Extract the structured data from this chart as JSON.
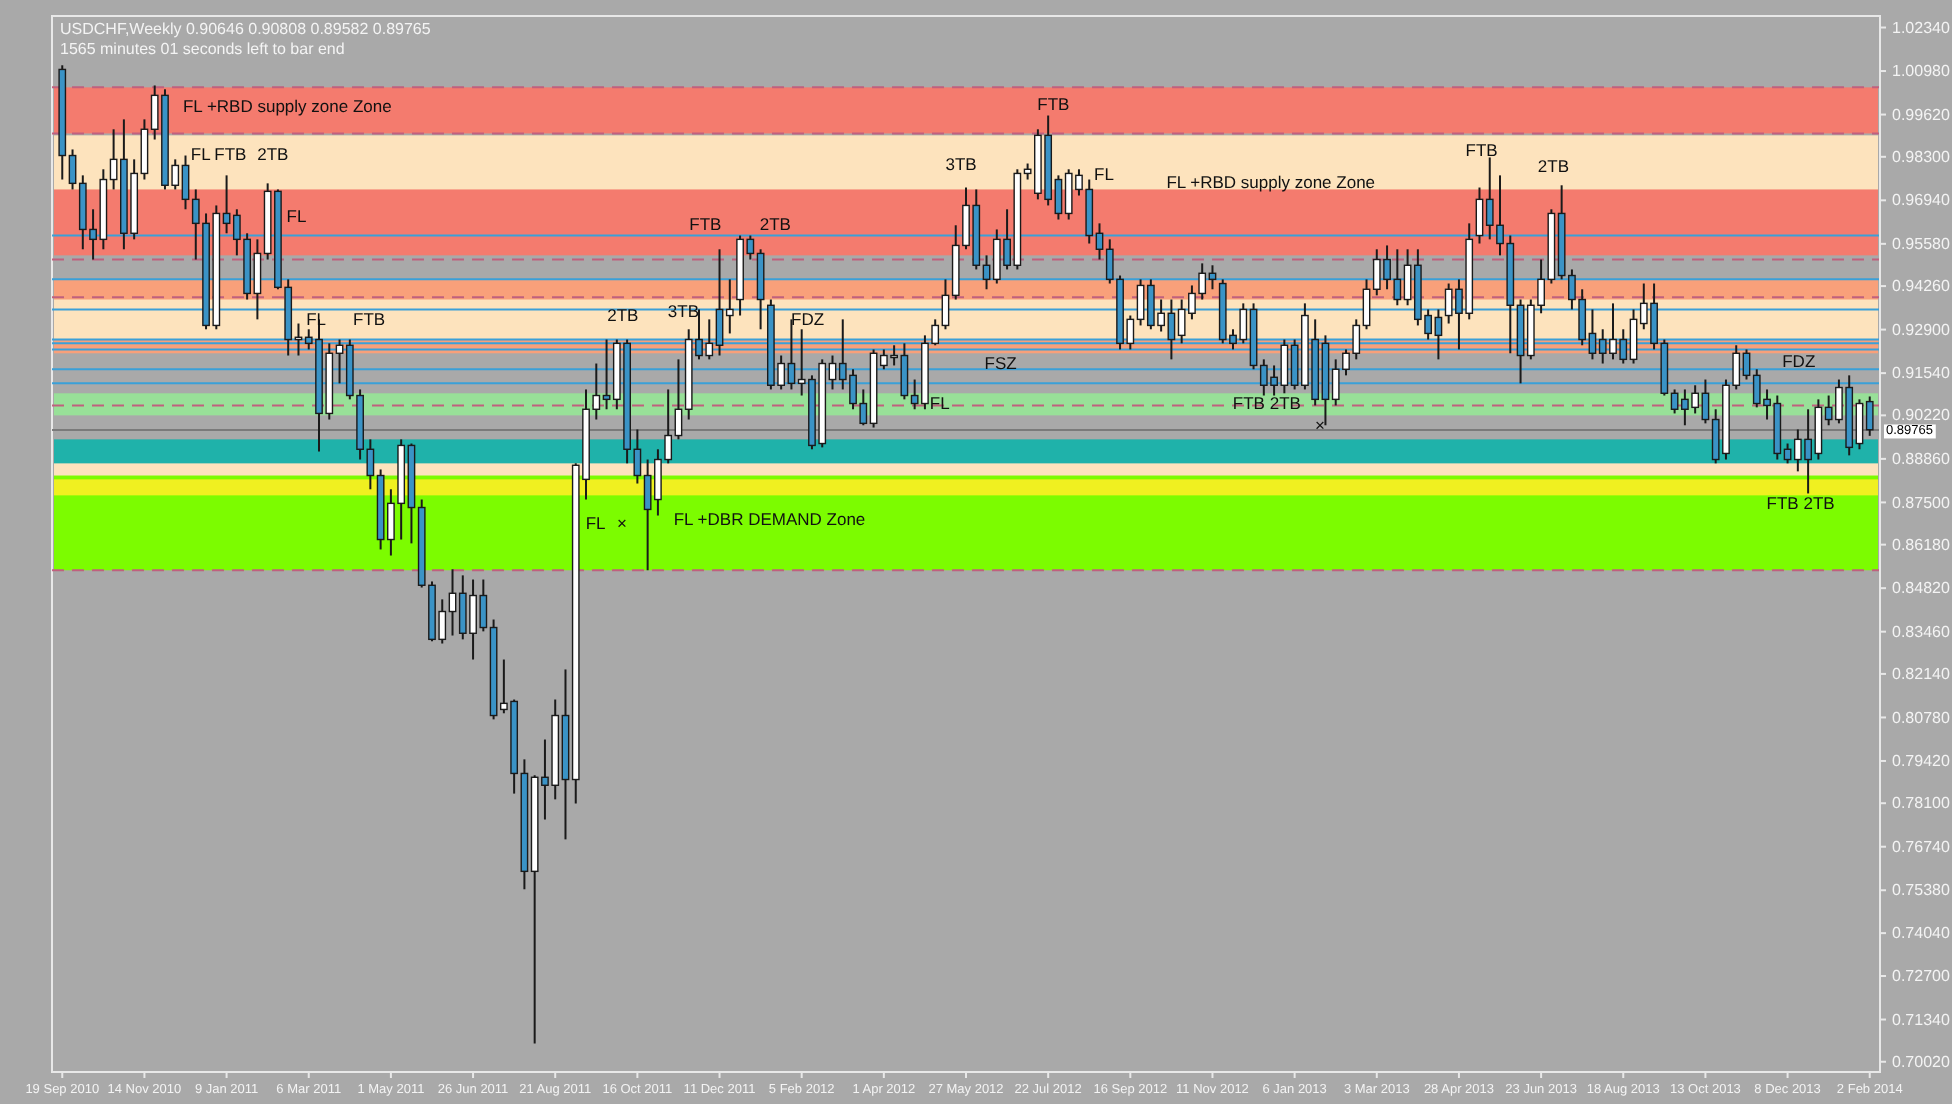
{
  "chart_data": {
    "type": "candlestick",
    "title": "USDCHF,Weekly  0.90646 0.90808 0.89582 0.89765",
    "subtitle": "1565 minutes 01 seconds left to bar end",
    "x": [
      "2010-09-19",
      "2010-09-26",
      "2010-10-03",
      "2010-10-10",
      "2010-10-17",
      "2010-10-24",
      "2010-10-31",
      "2010-11-07",
      "2010-11-14",
      "2010-11-21",
      "2010-11-28",
      "2010-12-05",
      "2010-12-12",
      "2010-12-19",
      "2010-12-26",
      "2011-01-02",
      "2011-01-09",
      "2011-01-16",
      "2011-01-23",
      "2011-01-30",
      "2011-02-06",
      "2011-02-13",
      "2011-02-20",
      "2011-02-27",
      "2011-03-06",
      "2011-03-13",
      "2011-03-20",
      "2011-03-27",
      "2011-04-03",
      "2011-04-10",
      "2011-04-17",
      "2011-04-24",
      "2011-05-01",
      "2011-05-08",
      "2011-05-15",
      "2011-05-22",
      "2011-05-29",
      "2011-06-05",
      "2011-06-12",
      "2011-06-19",
      "2011-06-26",
      "2011-07-03",
      "2011-07-10",
      "2011-07-17",
      "2011-07-24",
      "2011-07-31",
      "2011-08-07",
      "2011-08-14",
      "2011-08-21",
      "2011-08-28",
      "2011-09-04",
      "2011-09-11",
      "2011-09-18",
      "2011-09-25",
      "2011-10-02",
      "2011-10-09",
      "2011-10-16",
      "2011-10-23",
      "2011-10-30",
      "2011-11-06",
      "2011-11-13",
      "2011-11-20",
      "2011-11-27",
      "2011-12-04",
      "2011-12-11",
      "2011-12-18",
      "2011-12-25",
      "2012-01-01",
      "2012-01-08",
      "2012-01-15",
      "2012-01-22",
      "2012-01-29",
      "2012-02-05",
      "2012-02-12",
      "2012-02-19",
      "2012-02-26",
      "2012-03-04",
      "2012-03-11",
      "2012-03-18",
      "2012-03-25",
      "2012-04-01",
      "2012-04-08",
      "2012-04-15",
      "2012-04-22",
      "2012-04-29",
      "2012-05-06",
      "2012-05-13",
      "2012-05-20",
      "2012-05-27",
      "2012-06-03",
      "2012-06-10",
      "2012-06-17",
      "2012-06-24",
      "2012-07-01",
      "2012-07-08",
      "2012-07-15",
      "2012-07-22",
      "2012-07-29",
      "2012-08-05",
      "2012-08-12",
      "2012-08-19",
      "2012-08-26",
      "2012-09-02",
      "2012-09-09",
      "2012-09-16",
      "2012-09-23",
      "2012-09-30",
      "2012-10-07",
      "2012-10-14",
      "2012-10-21",
      "2012-10-28",
      "2012-11-04",
      "2012-11-11",
      "2012-11-18",
      "2012-11-25",
      "2012-12-02",
      "2012-12-09",
      "2012-12-16",
      "2012-12-23",
      "2012-12-30",
      "2013-01-06",
      "2013-01-13",
      "2013-01-20",
      "2013-01-27",
      "2013-02-03",
      "2013-02-10",
      "2013-02-17",
      "2013-02-24",
      "2013-03-03",
      "2013-03-10",
      "2013-03-17",
      "2013-03-24",
      "2013-03-31",
      "2013-04-07",
      "2013-04-14",
      "2013-04-21",
      "2013-04-28",
      "2013-05-05",
      "2013-05-12",
      "2013-05-19",
      "2013-05-26",
      "2013-06-02",
      "2013-06-09",
      "2013-06-16",
      "2013-06-23",
      "2013-06-30",
      "2013-07-07",
      "2013-07-14",
      "2013-07-21",
      "2013-07-28",
      "2013-08-04",
      "2013-08-11",
      "2013-08-18",
      "2013-08-25",
      "2013-09-01",
      "2013-09-08",
      "2013-09-15",
      "2013-09-22",
      "2013-09-29",
      "2013-10-06",
      "2013-10-13",
      "2013-10-20",
      "2013-10-27",
      "2013-11-03",
      "2013-11-10",
      "2013-11-17",
      "2013-11-24",
      "2013-12-01",
      "2013-12-08",
      "2013-12-15",
      "2013-12-22",
      "2013-12-29",
      "2014-01-05",
      "2014-01-12",
      "2014-01-19",
      "2014-01-26",
      "2014-02-02"
    ],
    "ohlc": [
      [
        1.0103,
        1.0116,
        0.9759,
        0.9834
      ],
      [
        0.9834,
        0.9853,
        0.9728,
        0.9747
      ],
      [
        0.9747,
        0.9772,
        0.9541,
        0.9603
      ],
      [
        0.9603,
        0.9666,
        0.9509,
        0.9572
      ],
      [
        0.9572,
        0.9791,
        0.9541,
        0.9759
      ],
      [
        0.9759,
        0.9916,
        0.9728,
        0.9822
      ],
      [
        0.9822,
        0.9947,
        0.9541,
        0.9591
      ],
      [
        0.9591,
        0.9822,
        0.9572,
        0.9778
      ],
      [
        0.9778,
        0.9947,
        0.9759,
        0.9916
      ],
      [
        0.9916,
        1.0053,
        0.9884,
        1.0022
      ],
      [
        1.0022,
        1.0041,
        0.9728,
        0.9741
      ],
      [
        0.9741,
        0.9822,
        0.9728,
        0.9803
      ],
      [
        0.9803,
        0.9834,
        0.9666,
        0.9697
      ],
      [
        0.9697,
        0.9728,
        0.9509,
        0.9622
      ],
      [
        0.9622,
        0.9653,
        0.9291,
        0.9303
      ],
      [
        0.9303,
        0.9678,
        0.9291,
        0.9653
      ],
      [
        0.9653,
        0.9772,
        0.9591,
        0.9622
      ],
      [
        0.9647,
        0.9666,
        0.9522,
        0.9572
      ],
      [
        0.9572,
        0.9591,
        0.9384,
        0.9403
      ],
      [
        0.9403,
        0.9572,
        0.9322,
        0.9528
      ],
      [
        0.9528,
        0.9747,
        0.9509,
        0.9722
      ],
      [
        0.9722,
        0.9728,
        0.9416,
        0.9422
      ],
      [
        0.9422,
        0.9447,
        0.9209,
        0.9259
      ],
      [
        0.9259,
        0.9309,
        0.9209,
        0.9266
      ],
      [
        0.9266,
        0.9291,
        0.9228,
        0.9247
      ],
      [
        0.9259,
        0.9322,
        0.8909,
        0.9028
      ],
      [
        0.9028,
        0.9247,
        0.9009,
        0.9216
      ],
      [
        0.9216,
        0.9259,
        0.9122,
        0.9241
      ],
      [
        0.9241,
        0.9259,
        0.9072,
        0.9084
      ],
      [
        0.9084,
        0.9103,
        0.8884,
        0.8916
      ],
      [
        0.8916,
        0.8947,
        0.8791,
        0.8834
      ],
      [
        0.8834,
        0.8853,
        0.8603,
        0.8634
      ],
      [
        0.8634,
        0.8791,
        0.8584,
        0.8747
      ],
      [
        0.8747,
        0.8947,
        0.8634,
        0.8928
      ],
      [
        0.8928,
        0.8934,
        0.8622,
        0.8734
      ],
      [
        0.8734,
        0.8759,
        0.8484,
        0.8491
      ],
      [
        0.8491,
        0.8503,
        0.8316,
        0.8322
      ],
      [
        0.8322,
        0.8447,
        0.8309,
        0.8409
      ],
      [
        0.8409,
        0.8541,
        0.8334,
        0.8466
      ],
      [
        0.8466,
        0.8522,
        0.8322,
        0.8341
      ],
      [
        0.8341,
        0.8509,
        0.8259,
        0.8459
      ],
      [
        0.8459,
        0.8509,
        0.8347,
        0.8359
      ],
      [
        0.8359,
        0.8384,
        0.8072,
        0.8084
      ],
      [
        0.8103,
        0.8259,
        0.8091,
        0.8122
      ],
      [
        0.8128,
        0.8134,
        0.784,
        0.7903
      ],
      [
        0.7903,
        0.7947,
        0.7541,
        0.7597
      ],
      [
        0.7597,
        0.7897,
        0.7059,
        0.7891
      ],
      [
        0.7891,
        0.8009,
        0.7759,
        0.7866
      ],
      [
        0.7866,
        0.8134,
        0.7822,
        0.8084
      ],
      [
        0.8084,
        0.8228,
        0.7697,
        0.7884
      ],
      [
        0.7884,
        0.8872,
        0.7809,
        0.8866
      ],
      [
        0.8822,
        0.9103,
        0.8759,
        0.9041
      ],
      [
        0.9041,
        0.9184,
        0.9009,
        0.9084
      ],
      [
        0.9084,
        0.9259,
        0.9041,
        0.9072
      ],
      [
        0.9072,
        0.9259,
        0.9041,
        0.9247
      ],
      [
        0.9247,
        0.9259,
        0.8872,
        0.8916
      ],
      [
        0.8916,
        0.8978,
        0.8809,
        0.8834
      ],
      [
        0.8834,
        0.8884,
        0.8538,
        0.8728
      ],
      [
        0.8759,
        0.8916,
        0.8709,
        0.8884
      ],
      [
        0.8884,
        0.9103,
        0.8872,
        0.8959
      ],
      [
        0.8959,
        0.9197,
        0.8947,
        0.9041
      ],
      [
        0.9041,
        0.9291,
        0.9009,
        0.9259
      ],
      [
        0.9259,
        0.9353,
        0.9197,
        0.9209
      ],
      [
        0.9209,
        0.9322,
        0.9197,
        0.9247
      ],
      [
        0.9353,
        0.9541,
        0.9209,
        0.9241
      ],
      [
        0.9334,
        0.9447,
        0.9278,
        0.9353
      ],
      [
        0.9384,
        0.9584,
        0.9334,
        0.9572
      ],
      [
        0.9572,
        0.9584,
        0.9509,
        0.9528
      ],
      [
        0.9528,
        0.9541,
        0.9291,
        0.9384
      ],
      [
        0.9366,
        0.9384,
        0.9103,
        0.9116
      ],
      [
        0.9116,
        0.9209,
        0.9103,
        0.9184
      ],
      [
        0.9184,
        0.9322,
        0.9103,
        0.9122
      ],
      [
        0.9122,
        0.9291,
        0.9084,
        0.9134
      ],
      [
        0.9134,
        0.9147,
        0.8916,
        0.8928
      ],
      [
        0.8934,
        0.9197,
        0.8922,
        0.9184
      ],
      [
        0.9134,
        0.9209,
        0.9103,
        0.9184
      ],
      [
        0.9184,
        0.9322,
        0.9103,
        0.9134
      ],
      [
        0.9147,
        0.9166,
        0.9041,
        0.9059
      ],
      [
        0.9059,
        0.9103,
        0.8991,
        0.8997
      ],
      [
        0.8997,
        0.9228,
        0.8984,
        0.9216
      ],
      [
        0.9178,
        0.9228,
        0.9166,
        0.9209
      ],
      [
        0.9209,
        0.9241,
        0.9178,
        0.9209
      ],
      [
        0.9209,
        0.9247,
        0.9072,
        0.9084
      ],
      [
        0.9084,
        0.9134,
        0.9041,
        0.9059
      ],
      [
        0.9059,
        0.9272,
        0.9041,
        0.9247
      ],
      [
        0.9247,
        0.9322,
        0.9241,
        0.9303
      ],
      [
        0.9303,
        0.9447,
        0.9291,
        0.9397
      ],
      [
        0.9397,
        0.9616,
        0.9384,
        0.9553
      ],
      [
        0.9553,
        0.9734,
        0.9541,
        0.9678
      ],
      [
        0.9678,
        0.9728,
        0.9478,
        0.9491
      ],
      [
        0.9491,
        0.9522,
        0.9416,
        0.9447
      ],
      [
        0.9447,
        0.9603,
        0.9434,
        0.9572
      ],
      [
        0.9572,
        0.9666,
        0.9478,
        0.9491
      ],
      [
        0.9491,
        0.9791,
        0.9478,
        0.9778
      ],
      [
        0.9778,
        0.9809,
        0.9759,
        0.9791
      ],
      [
        0.9716,
        0.9916,
        0.9697,
        0.9897
      ],
      [
        0.9897,
        0.9959,
        0.9678,
        0.9697
      ],
      [
        0.9759,
        0.9772,
        0.9634,
        0.9653
      ],
      [
        0.9653,
        0.9791,
        0.9634,
        0.9778
      ],
      [
        0.9728,
        0.9791,
        0.9709,
        0.9772
      ],
      [
        0.9728,
        0.9759,
        0.9559,
        0.9584
      ],
      [
        0.9591,
        0.9622,
        0.9509,
        0.9541
      ],
      [
        0.9541,
        0.9572,
        0.9434,
        0.9447
      ],
      [
        0.9447,
        0.9459,
        0.9228,
        0.9247
      ],
      [
        0.9247,
        0.9334,
        0.9228,
        0.9322
      ],
      [
        0.9322,
        0.9447,
        0.9303,
        0.9428
      ],
      [
        0.9428,
        0.9447,
        0.9291,
        0.9303
      ],
      [
        0.9303,
        0.9384,
        0.9284,
        0.9341
      ],
      [
        0.9341,
        0.9384,
        0.9197,
        0.9259
      ],
      [
        0.9272,
        0.9384,
        0.9247,
        0.9353
      ],
      [
        0.9341,
        0.9428,
        0.9322,
        0.9403
      ],
      [
        0.9403,
        0.9497,
        0.9384,
        0.9466
      ],
      [
        0.9466,
        0.9491,
        0.9416,
        0.9447
      ],
      [
        0.9434,
        0.9447,
        0.9247,
        0.9259
      ],
      [
        0.9272,
        0.9291,
        0.9228,
        0.9247
      ],
      [
        0.9259,
        0.9372,
        0.9247,
        0.9353
      ],
      [
        0.9353,
        0.9372,
        0.9166,
        0.9178
      ],
      [
        0.9178,
        0.9197,
        0.9084,
        0.9116
      ],
      [
        0.9141,
        0.9178,
        0.9084,
        0.9116
      ],
      [
        0.9116,
        0.9259,
        0.9091,
        0.9241
      ],
      [
        0.9241,
        0.9259,
        0.9103,
        0.9116
      ],
      [
        0.9116,
        0.9372,
        0.9103,
        0.9334
      ],
      [
        0.9259,
        0.9322,
        0.9053,
        0.9072
      ],
      [
        0.9247,
        0.9272,
        0.8991,
        0.9072
      ],
      [
        0.9072,
        0.9197,
        0.9053,
        0.9166
      ],
      [
        0.9166,
        0.9228,
        0.9147,
        0.9216
      ],
      [
        0.9216,
        0.9322,
        0.9197,
        0.9303
      ],
      [
        0.9303,
        0.9447,
        0.9291,
        0.9416
      ],
      [
        0.9416,
        0.9541,
        0.9397,
        0.9509
      ],
      [
        0.9509,
        0.9553,
        0.9416,
        0.9447
      ],
      [
        0.9447,
        0.9541,
        0.9366,
        0.9384
      ],
      [
        0.9384,
        0.9541,
        0.9366,
        0.9491
      ],
      [
        0.9491,
        0.9541,
        0.9303,
        0.9322
      ],
      [
        0.9334,
        0.9353,
        0.9259,
        0.9278
      ],
      [
        0.9328,
        0.9353,
        0.9197,
        0.9272
      ],
      [
        0.9334,
        0.9434,
        0.9309,
        0.9416
      ],
      [
        0.9416,
        0.9447,
        0.9228,
        0.9341
      ],
      [
        0.9341,
        0.9622,
        0.9322,
        0.9572
      ],
      [
        0.9584,
        0.9734,
        0.9559,
        0.9697
      ],
      [
        0.9697,
        0.9828,
        0.9572,
        0.9616
      ],
      [
        0.9616,
        0.9772,
        0.9522,
        0.9559
      ],
      [
        0.9559,
        0.9584,
        0.9216,
        0.9366
      ],
      [
        0.9366,
        0.9384,
        0.9122,
        0.9209
      ],
      [
        0.9209,
        0.9384,
        0.9197,
        0.9366
      ],
      [
        0.9366,
        0.9509,
        0.9341,
        0.9447
      ],
      [
        0.9447,
        0.9666,
        0.9434,
        0.9653
      ],
      [
        0.9653,
        0.9741,
        0.9447,
        0.9459
      ],
      [
        0.9459,
        0.9478,
        0.9353,
        0.9384
      ],
      [
        0.9384,
        0.9416,
        0.9241,
        0.9259
      ],
      [
        0.9278,
        0.9353,
        0.9197,
        0.9216
      ],
      [
        0.9259,
        0.9291,
        0.9184,
        0.9216
      ],
      [
        0.9216,
        0.9372,
        0.9197,
        0.9259
      ],
      [
        0.9259,
        0.9291,
        0.9184,
        0.9197
      ],
      [
        0.9197,
        0.9353,
        0.9184,
        0.9322
      ],
      [
        0.9309,
        0.9434,
        0.9291,
        0.9372
      ],
      [
        0.9372,
        0.9434,
        0.9228,
        0.9247
      ],
      [
        0.9247,
        0.9259,
        0.9084,
        0.9091
      ],
      [
        0.9091,
        0.9103,
        0.9028,
        0.9041
      ],
      [
        0.9072,
        0.9103,
        0.8991,
        0.9041
      ],
      [
        0.9047,
        0.9116,
        0.9028,
        0.9091
      ],
      [
        0.9091,
        0.9134,
        0.8997,
        0.9009
      ],
      [
        0.9009,
        0.9041,
        0.8872,
        0.8884
      ],
      [
        0.8903,
        0.9134,
        0.8884,
        0.9116
      ],
      [
        0.9116,
        0.9241,
        0.9103,
        0.9216
      ],
      [
        0.9216,
        0.9228,
        0.9134,
        0.9147
      ],
      [
        0.9147,
        0.9166,
        0.9047,
        0.9059
      ],
      [
        0.9072,
        0.9103,
        0.9009,
        0.9053
      ],
      [
        0.9059,
        0.9084,
        0.8884,
        0.8903
      ],
      [
        0.8916,
        0.8934,
        0.8872,
        0.8884
      ],
      [
        0.8884,
        0.8978,
        0.8847,
        0.8947
      ],
      [
        0.8947,
        0.9041,
        0.8778,
        0.8884
      ],
      [
        0.8903,
        0.9072,
        0.8884,
        0.9047
      ],
      [
        0.9047,
        0.9084,
        0.8991,
        0.9009
      ],
      [
        0.9009,
        0.9134,
        0.8997,
        0.9109
      ],
      [
        0.9109,
        0.9147,
        0.8897,
        0.8922
      ],
      [
        0.8934,
        0.9072,
        0.8916,
        0.9059
      ],
      [
        0.9065,
        0.9081,
        0.8958,
        0.8977
      ]
    ],
    "xlim": [
      "2010-09-12",
      "2014-02-09"
    ],
    "xticks": [
      {
        "value": "2010-09-19",
        "label": "19 Sep 2010"
      },
      {
        "value": "2010-11-14",
        "label": "14 Nov 2010"
      },
      {
        "value": "2011-01-09",
        "label": "9 Jan 2011"
      },
      {
        "value": "2011-03-06",
        "label": "6 Mar 2011"
      },
      {
        "value": "2011-05-01",
        "label": "1 May 2011"
      },
      {
        "value": "2011-06-26",
        "label": "26 Jun 2011"
      },
      {
        "value": "2011-08-21",
        "label": "21 Aug 2011"
      },
      {
        "value": "2011-10-16",
        "label": "16 Oct 2011"
      },
      {
        "value": "2011-12-11",
        "label": "11 Dec 2011"
      },
      {
        "value": "2012-02-05",
        "label": "5 Feb 2012"
      },
      {
        "value": "2012-04-01",
        "label": "1 Apr 2012"
      },
      {
        "value": "2012-05-27",
        "label": "27 May 2012"
      },
      {
        "value": "2012-07-22",
        "label": "22 Jul 2012"
      },
      {
        "value": "2012-09-16",
        "label": "16 Sep 2012"
      },
      {
        "value": "2012-11-11",
        "label": "11 Nov 2012"
      },
      {
        "value": "2013-01-06",
        "label": "6 Jan 2013"
      },
      {
        "value": "2013-03-03",
        "label": "3 Mar 2013"
      },
      {
        "value": "2013-04-28",
        "label": "28 Apr 2013"
      },
      {
        "value": "2013-06-23",
        "label": "23 Jun 2013"
      },
      {
        "value": "2013-08-18",
        "label": "18 Aug 2013"
      },
      {
        "value": "2013-10-13",
        "label": "13 Oct 2013"
      },
      {
        "value": "2013-12-08",
        "label": "8 Dec 2013"
      },
      {
        "value": "2014-02-02",
        "label": "2 Feb 2014"
      }
    ],
    "ylim": [
      0.697,
      1.027
    ],
    "yticks": [
      {
        "value": 1.0234,
        "label": "1.02340"
      },
      {
        "value": 1.0098,
        "label": "1.00980"
      },
      {
        "value": 0.9962,
        "label": "0.99620"
      },
      {
        "value": 0.983,
        "label": "0.98300"
      },
      {
        "value": 0.9694,
        "label": "0.96940"
      },
      {
        "value": 0.9558,
        "label": "0.95580"
      },
      {
        "value": 0.9426,
        "label": "0.94260"
      },
      {
        "value": 0.929,
        "label": "0.92900"
      },
      {
        "value": 0.9154,
        "label": "0.91540"
      },
      {
        "value": 0.9022,
        "label": "0.90220"
      },
      {
        "value": 0.8886,
        "label": "0.88860"
      },
      {
        "value": 0.875,
        "label": "0.87500"
      },
      {
        "value": 0.8618,
        "label": "0.86180"
      },
      {
        "value": 0.8482,
        "label": "0.84820"
      },
      {
        "value": 0.8346,
        "label": "0.83460"
      },
      {
        "value": 0.8214,
        "label": "0.82140"
      },
      {
        "value": 0.8078,
        "label": "0.80780"
      },
      {
        "value": 0.7942,
        "label": "0.79420"
      },
      {
        "value": 0.781,
        "label": "0.78100"
      },
      {
        "value": 0.7674,
        "label": "0.76740"
      },
      {
        "value": 0.7538,
        "label": "0.75380"
      },
      {
        "value": 0.7404,
        "label": "0.74040"
      },
      {
        "value": 0.727,
        "label": "0.72700"
      },
      {
        "value": 0.7134,
        "label": "0.71340"
      },
      {
        "value": 0.7002,
        "label": "0.70020"
      }
    ],
    "bands": [
      {
        "axis": "y",
        "from": 0.9903,
        "to": 1.0047,
        "color": "#f47b6e"
      },
      {
        "axis": "y",
        "from": 0.9734,
        "to": 0.9897,
        "color": "#fde3bd"
      },
      {
        "axis": "y",
        "from": 0.9653,
        "to": 0.9891,
        "color": "#fde3bd"
      },
      {
        "axis": "y",
        "from": 0.9522,
        "to": 0.9728,
        "color": "#f47b6e"
      },
      {
        "axis": "y",
        "from": 0.9216,
        "to": 0.9447,
        "color": "#f9a07a"
      },
      {
        "axis": "y",
        "from": 0.9259,
        "to": 0.9384,
        "color": "#fde3bd"
      },
      {
        "axis": "y",
        "from": 0.9022,
        "to": 0.9091,
        "color": "#98e098"
      },
      {
        "axis": "y",
        "from": 0.8822,
        "to": 0.8947,
        "color": "#1fb2aa"
      },
      {
        "axis": "y",
        "from": 0.8622,
        "to": 0.8872,
        "color": "#fde3bd"
      },
      {
        "axis": "y",
        "from": 0.8538,
        "to": 0.8834,
        "color": "#7cfc00"
      },
      {
        "axis": "y",
        "from": 0.8772,
        "to": 0.8822,
        "color": "#f0f020"
      }
    ],
    "ref_lines": [
      {
        "axis": "y",
        "value": 1.0047,
        "color": "#c0607e",
        "line_style": "dashed"
      },
      {
        "axis": "y",
        "value": 0.9903,
        "color": "#c0607e",
        "line_style": "dashed"
      },
      {
        "axis": "y",
        "value": 0.9509,
        "color": "#c0607e",
        "line_style": "dashed"
      },
      {
        "axis": "y",
        "value": 0.9391,
        "color": "#c0607e",
        "line_style": "dashed"
      },
      {
        "axis": "y",
        "value": 0.9053,
        "color": "#c0607e",
        "line_style": "dashed"
      },
      {
        "axis": "y",
        "value": 0.8538,
        "color": "#c0607e",
        "line_style": "dashed"
      },
      {
        "axis": "y",
        "value": 0.9584,
        "color": "#3aa0d8",
        "line_style": "solid"
      },
      {
        "axis": "y",
        "value": 0.9447,
        "color": "#3aa0d8",
        "line_style": "solid"
      },
      {
        "axis": "y",
        "value": 0.9353,
        "color": "#3aa0d8",
        "line_style": "solid"
      },
      {
        "axis": "y",
        "value": 0.9228,
        "color": "#3aa0d8",
        "line_style": "solid"
      },
      {
        "axis": "y",
        "value": 0.9247,
        "color": "#3aa0d8",
        "line_style": "solid"
      },
      {
        "axis": "y",
        "value": 0.9166,
        "color": "#3aa0d8",
        "line_style": "solid"
      },
      {
        "axis": "y",
        "value": 0.9259,
        "color": "#3aa0d8",
        "line_style": "solid"
      },
      {
        "axis": "y",
        "value": 0.9122,
        "color": "#3aa0d8",
        "line_style": "solid"
      },
      {
        "axis": "y",
        "value": 0.89765,
        "label": "0.89765",
        "color": "#7a7a7a",
        "line_style": "solid"
      }
    ],
    "annotations": [
      "FL +RBD supply zone Zone",
      "FL",
      "FTB",
      "2TB",
      "FL",
      "FL",
      "FTB",
      "FL",
      "×",
      "2TB",
      "3TB",
      "FL +DBR DEMAND Zone",
      "FTB",
      "2TB",
      "FDZ",
      "FL",
      "3TB",
      "FSZ",
      "FTB",
      "FL",
      "FTB 2TB",
      "FL +RBD supply zone Zone",
      "×",
      "FTB",
      "2TB",
      "FDZ",
      "FTB 2TB"
    ]
  }
}
